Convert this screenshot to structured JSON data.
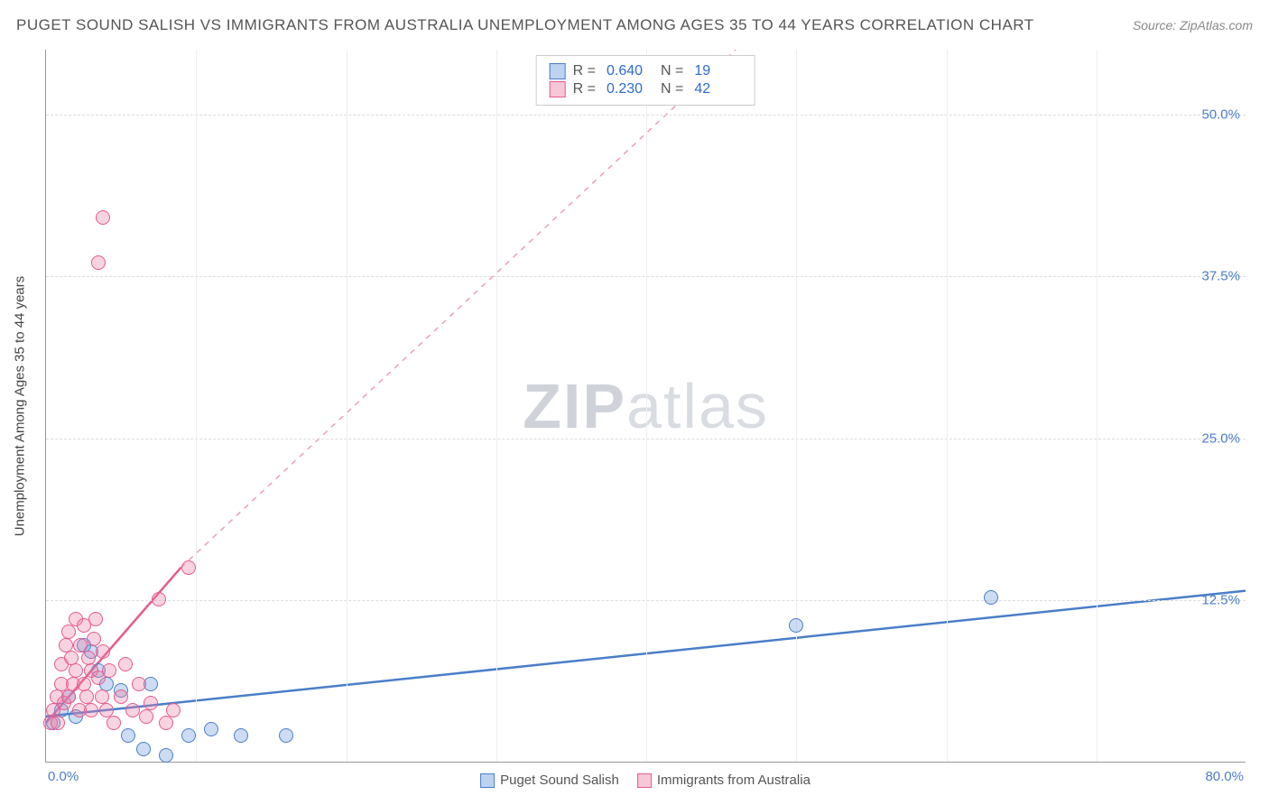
{
  "header": {
    "title": "PUGET SOUND SALISH VS IMMIGRANTS FROM AUSTRALIA UNEMPLOYMENT AMONG AGES 35 TO 44 YEARS CORRELATION CHART",
    "source": "Source: ZipAtlas.com"
  },
  "watermark": {
    "pre": "ZIP",
    "post": "atlas"
  },
  "chart": {
    "type": "scatter",
    "ylabel": "Unemployment Among Ages 35 to 44 years",
    "xlim": [
      0,
      80
    ],
    "ylim": [
      0,
      55
    ],
    "x_ticks": [
      {
        "v": 0,
        "label": "0.0%",
        "cls": "left"
      },
      {
        "v": 80,
        "label": "80.0%",
        "cls": "right"
      }
    ],
    "y_ticks": [
      {
        "v": 12.5,
        "label": "12.5%"
      },
      {
        "v": 25,
        "label": "25.0%"
      },
      {
        "v": 37.5,
        "label": "37.5%"
      },
      {
        "v": 50,
        "label": "50.0%"
      }
    ],
    "x_grid": [
      10,
      20,
      30,
      40,
      50,
      60,
      70
    ],
    "background_color": "#ffffff",
    "grid_color": "#dddddd",
    "series": [
      {
        "id": "s1",
        "name": "Puget Sound Salish",
        "color": "#4a7ec9",
        "fill": "rgba(106,156,220,0.35)",
        "R": "0.640",
        "N": "19",
        "trend": {
          "x1": 0,
          "y1": 3.5,
          "x2": 80,
          "y2": 13.2,
          "dashed": false,
          "width": 2.5,
          "extend_x": 80,
          "extend_y": 13.2
        },
        "points": [
          [
            0.5,
            3
          ],
          [
            1,
            4
          ],
          [
            1.5,
            5
          ],
          [
            2,
            3.5
          ],
          [
            2.5,
            9
          ],
          [
            3,
            8.5
          ],
          [
            3.5,
            7
          ],
          [
            4,
            6
          ],
          [
            5,
            5.5
          ],
          [
            5.5,
            2
          ],
          [
            6.5,
            1
          ],
          [
            7,
            6
          ],
          [
            8,
            0.5
          ],
          [
            9.5,
            2
          ],
          [
            11,
            2.5
          ],
          [
            13,
            2
          ],
          [
            16,
            2
          ],
          [
            50,
            10.5
          ],
          [
            63,
            12.7
          ]
        ]
      },
      {
        "id": "s2",
        "name": "Immigrants from Australia",
        "color": "#e85a8e",
        "fill": "rgba(235,130,165,0.35)",
        "R": "0.230",
        "N": "42",
        "trend": {
          "x1": 0,
          "y1": 3.0,
          "x2": 9,
          "y2": 15.0,
          "dashed": false,
          "width": 2.5,
          "extend_x": 46,
          "extend_y": 55
        },
        "points": [
          [
            0.3,
            3
          ],
          [
            0.5,
            4
          ],
          [
            0.7,
            5
          ],
          [
            0.8,
            3
          ],
          [
            1,
            6
          ],
          [
            1,
            7.5
          ],
          [
            1.2,
            4.5
          ],
          [
            1.3,
            9
          ],
          [
            1.5,
            10
          ],
          [
            1.5,
            5
          ],
          [
            1.7,
            8
          ],
          [
            1.8,
            6
          ],
          [
            2,
            11
          ],
          [
            2,
            7
          ],
          [
            2.2,
            4
          ],
          [
            2.3,
            9
          ],
          [
            2.5,
            10.5
          ],
          [
            2.5,
            6
          ],
          [
            2.7,
            5
          ],
          [
            2.8,
            8
          ],
          [
            3,
            4
          ],
          [
            3,
            7
          ],
          [
            3.2,
            9.5
          ],
          [
            3.3,
            11
          ],
          [
            3.5,
            6.5
          ],
          [
            3.7,
            5
          ],
          [
            3.8,
            8.5
          ],
          [
            4,
            4
          ],
          [
            4.2,
            7
          ],
          [
            4.5,
            3
          ],
          [
            5,
            5
          ],
          [
            5.3,
            7.5
          ],
          [
            5.8,
            4
          ],
          [
            6.2,
            6
          ],
          [
            6.7,
            3.5
          ],
          [
            7,
            4.5
          ],
          [
            7.5,
            12.5
          ],
          [
            8,
            3
          ],
          [
            8.5,
            4
          ],
          [
            9.5,
            15
          ],
          [
            3.5,
            38.5
          ],
          [
            3.8,
            42
          ]
        ]
      }
    ]
  }
}
